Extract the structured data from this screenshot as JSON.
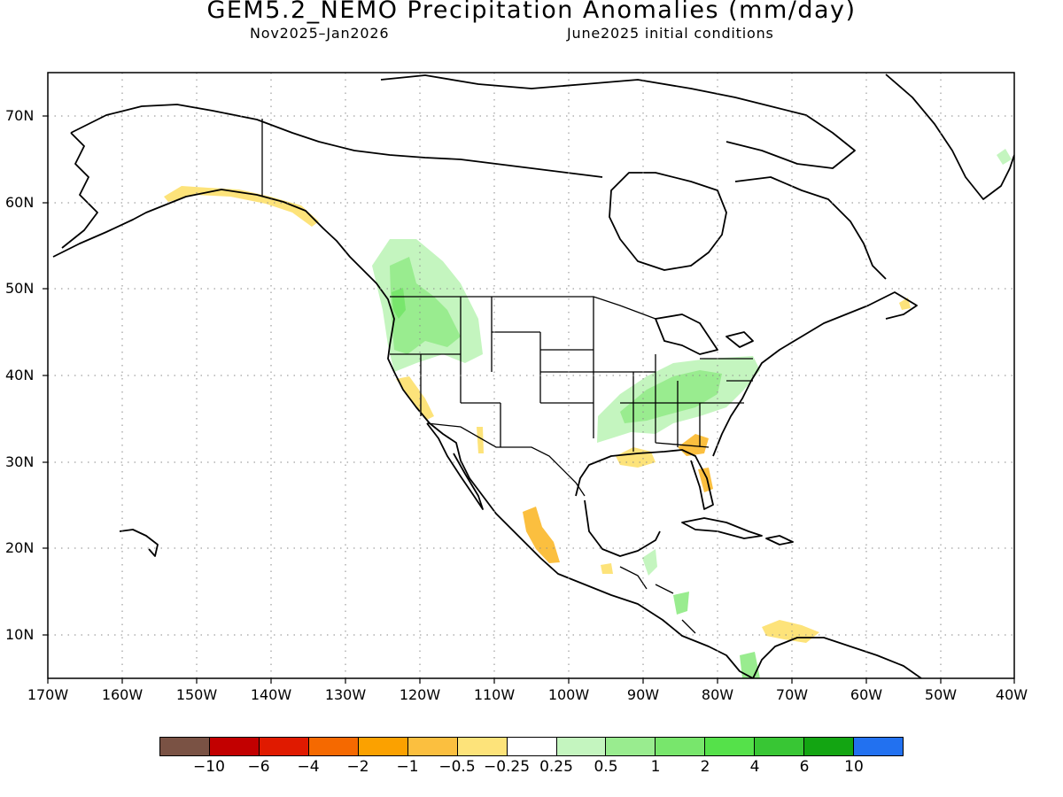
{
  "title": "GEM5.2_NEMO Precipitation Anomalies (mm/day)",
  "subtitle_left": "Nov2025–Jan2026",
  "subtitle_right": "June2025 initial conditions",
  "map": {
    "region": "North America",
    "lon_labels": [
      "170W",
      "160W",
      "150W",
      "140W",
      "130W",
      "120W",
      "110W",
      "100W",
      "90W",
      "80W",
      "70W",
      "60W",
      "50W",
      "40W"
    ],
    "lat_labels": [
      "70N",
      "60N",
      "50N",
      "40N",
      "30N",
      "20N",
      "10N"
    ],
    "grid": "dotted",
    "anomaly_regions": [
      {
        "name": "pacific-northwest-wet",
        "category": "0.25 to 1"
      },
      {
        "name": "ohio-tennessee-valley-wet",
        "category": "0.25 to 1"
      },
      {
        "name": "gulf-coast-dry",
        "category": "-1 to -0.25"
      },
      {
        "name": "southern-alaska-dry",
        "category": "-1 to -0.25"
      },
      {
        "name": "california-dry",
        "category": "-1 to -0.25"
      },
      {
        "name": "western-mexico-dry",
        "category": "-1 to -0.25"
      },
      {
        "name": "panama-wet",
        "category": "0.25 to 1"
      }
    ]
  },
  "legend": {
    "colors": [
      "#7a5244",
      "#c20000",
      "#e01a00",
      "#f56900",
      "#fba100",
      "#fbbf3f",
      "#fde37a",
      "#ffffff",
      "#c4f5bf",
      "#99ec8f",
      "#78e66c",
      "#55e14a",
      "#38c634",
      "#13a512",
      "#2271f0"
    ],
    "labels": [
      "−10",
      "−6",
      "−4",
      "−2",
      "−1",
      "−0.5",
      "−0.25",
      "0.25",
      "0.5",
      "1",
      "2",
      "4",
      "6",
      "10"
    ]
  }
}
